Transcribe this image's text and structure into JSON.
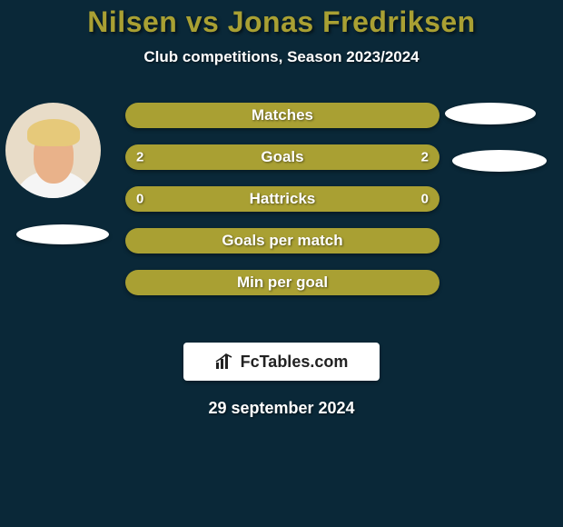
{
  "title_color": "#a9a033",
  "title": "Nilsen vs Jonas Fredriksen",
  "subtitle": "Club competitions, Season 2023/2024",
  "background_color": "#0a2838",
  "bars": [
    {
      "label": "Matches",
      "left": "",
      "right": "",
      "color": "#a9a033"
    },
    {
      "label": "Goals",
      "left": "2",
      "right": "2",
      "color": "#a9a033"
    },
    {
      "label": "Hattricks",
      "left": "0",
      "right": "0",
      "color": "#a9a033"
    },
    {
      "label": "Goals per match",
      "left": "",
      "right": "",
      "color": "#a9a033"
    },
    {
      "label": "Min per goal",
      "left": "",
      "right": "",
      "color": "#a9a033"
    }
  ],
  "bar_style": {
    "height": 28,
    "border_radius": 14,
    "gap": 18,
    "label_fontsize": 17,
    "value_fontsize": 15,
    "text_color": "#ffffff"
  },
  "avatars": {
    "ellipse_color": "#ffffff"
  },
  "logo": {
    "text": "FcTables.com",
    "icon_name": "bar-chart-icon",
    "box_bg": "#ffffff",
    "text_color": "#222222"
  },
  "date": "29 september 2024"
}
